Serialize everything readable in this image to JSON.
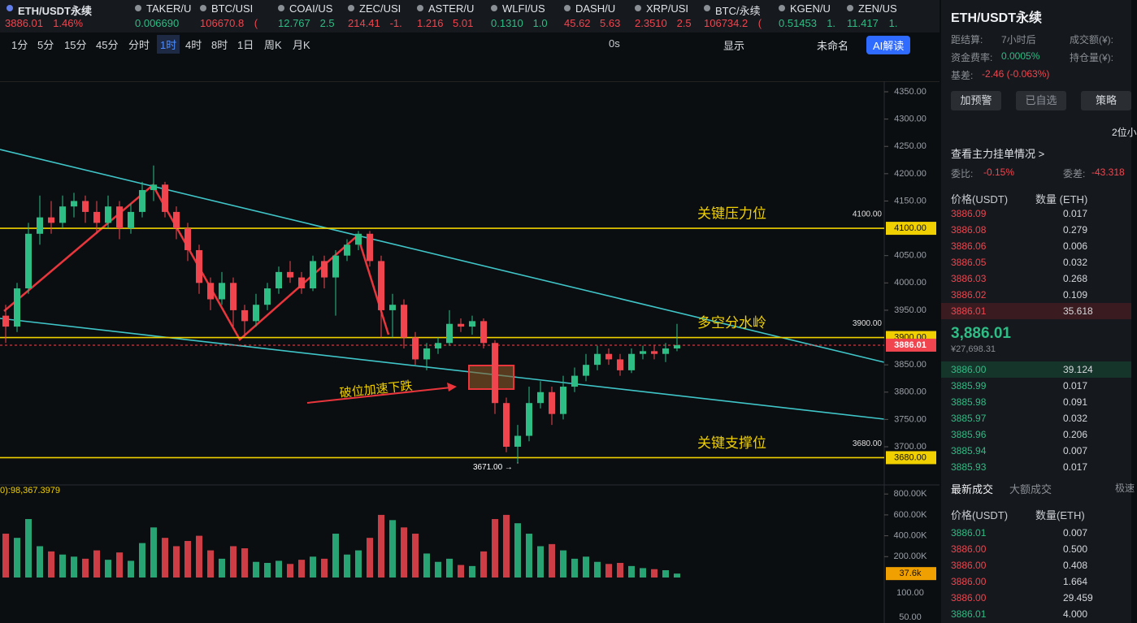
{
  "tabs": [
    {
      "name": "ETH/USDT永续",
      "price": "3886.01",
      "change": "1.46%",
      "color": "#f0454f"
    },
    {
      "name": "TAKER/U",
      "price": "0.006690",
      "color": "#2ebd85"
    },
    {
      "name": "BTC/USI",
      "price": "106670.8",
      "change": "(",
      "color": "#f0454f"
    },
    {
      "name": "COAI/US",
      "price": "12.767",
      "change": "2.5",
      "color": "#2ebd85"
    },
    {
      "name": "ZEC/USI",
      "price": "214.41",
      "change": "-1.",
      "color": "#f0454f"
    },
    {
      "name": "ASTER/U",
      "price": "1.216",
      "change": "5.01",
      "color": "#f0454f"
    },
    {
      "name": "WLFI/US",
      "price": "0.1310",
      "change": "1.0",
      "color": "#2ebd85"
    },
    {
      "name": "DASH/U",
      "price": "45.62",
      "change": "5.63",
      "color": "#f0454f"
    },
    {
      "name": "XRP/USI",
      "price": "2.3510",
      "change": "2.5",
      "color": "#f0454f"
    },
    {
      "name": "BTC/永续",
      "price": "106734.2",
      "change": "(",
      "color": "#f0454f"
    },
    {
      "name": "KGEN/U",
      "price": "0.51453",
      "change": "1.",
      "color": "#2ebd85"
    },
    {
      "name": "ZEN/US",
      "price": "11.417",
      "change": "1.",
      "color": "#2ebd85"
    }
  ],
  "intervals": [
    "1分",
    "5分",
    "15分",
    "45分",
    "分时",
    "1时",
    "4时",
    "8时",
    "1日",
    "周K",
    "月K"
  ],
  "active_interval": 5,
  "toolbar": {
    "timer": "0s",
    "display": "显示",
    "layout": "未命名",
    "ai": "AI解读"
  },
  "chart_data": {
    "type": "candlestick",
    "ylim": [
      3650,
      4380
    ],
    "yticks": [
      {
        "value": 4350,
        "label": "4350.00"
      },
      {
        "value": 4300,
        "label": "4300.00"
      },
      {
        "value": 4250,
        "label": "4250.00"
      },
      {
        "value": 4200,
        "label": "4200.00"
      },
      {
        "value": 4150,
        "label": "4150.00"
      },
      {
        "value": 4050,
        "label": "4050.00"
      },
      {
        "value": 4000,
        "label": "4000.00"
      },
      {
        "value": 3950,
        "label": "3950.00"
      },
      {
        "value": 3850,
        "label": "3850.00"
      },
      {
        "value": 3800,
        "label": "3800.00"
      },
      {
        "value": 3750,
        "label": "3750.00"
      },
      {
        "value": 3700,
        "label": "3700.00"
      }
    ],
    "levels": [
      {
        "name": "关键压力位",
        "value": 4100,
        "label": "4100.00",
        "axis_label": "4100.00"
      },
      {
        "name": "多空分水岭",
        "value": 3900,
        "label": "3900.00",
        "axis_label": "3900.00"
      },
      {
        "name": "关键支撑位",
        "value": 3680,
        "label": "3680.00",
        "axis_label": "3680.00"
      }
    ],
    "last_price": {
      "value": 3886.01,
      "label": "3886.01"
    },
    "low_label": {
      "value": 3671,
      "label": "3671.00 →"
    },
    "annotation": "破位加速下跌",
    "up_color": "#2ebd85",
    "down_color": "#f0454f",
    "candles": [
      [
        3940,
        3960,
        3890,
        3920
      ],
      [
        3920,
        4000,
        3910,
        3990
      ],
      [
        3990,
        4110,
        3980,
        4090
      ],
      [
        4090,
        4160,
        4070,
        4120
      ],
      [
        4120,
        4150,
        4090,
        4110
      ],
      [
        4110,
        4160,
        4100,
        4140
      ],
      [
        4140,
        4165,
        4120,
        4150
      ],
      [
        4150,
        4160,
        4110,
        4130
      ],
      [
        4130,
        4150,
        4090,
        4110
      ],
      [
        4110,
        4160,
        4100,
        4140
      ],
      [
        4140,
        4150,
        4080,
        4100
      ],
      [
        4100,
        4145,
        4090,
        4130
      ],
      [
        4130,
        4185,
        4120,
        4170
      ],
      [
        4170,
        4215,
        4150,
        4180
      ],
      [
        4180,
        4185,
        4120,
        4130
      ],
      [
        4130,
        4140,
        4080,
        4100
      ],
      [
        4100,
        4110,
        4040,
        4060
      ],
      [
        4060,
        4070,
        3980,
        4000
      ],
      [
        4000,
        4010,
        3950,
        3970
      ],
      [
        3970,
        4020,
        3960,
        4000
      ],
      [
        4000,
        4010,
        3920,
        3950
      ],
      [
        3950,
        3960,
        3900,
        3930
      ],
      [
        3930,
        3980,
        3920,
        3960
      ],
      [
        3960,
        4000,
        3950,
        3990
      ],
      [
        3990,
        4030,
        3980,
        4020
      ],
      [
        4020,
        4040,
        4000,
        4010
      ],
      [
        4010,
        4020,
        3980,
        3990
      ],
      [
        3990,
        4050,
        3985,
        4040
      ],
      [
        4040,
        4050,
        3990,
        4010
      ],
      [
        4010,
        4060,
        3940,
        4050
      ],
      [
        4050,
        4080,
        4040,
        4070
      ],
      [
        4070,
        4095,
        4060,
        4090
      ],
      [
        4090,
        4095,
        4030,
        4040
      ],
      [
        4040,
        4050,
        3900,
        3950
      ],
      [
        3950,
        3980,
        3900,
        3960
      ],
      [
        3960,
        3970,
        3880,
        3900
      ],
      [
        3900,
        3910,
        3850,
        3860
      ],
      [
        3860,
        3890,
        3840,
        3880
      ],
      [
        3880,
        3900,
        3870,
        3890
      ],
      [
        3890,
        3950,
        3885,
        3925
      ],
      [
        3925,
        3935,
        3910,
        3920
      ],
      [
        3920,
        3940,
        3905,
        3930
      ],
      [
        3930,
        3935,
        3880,
        3890
      ],
      [
        3890,
        3895,
        3760,
        3780
      ],
      [
        3780,
        3790,
        3690,
        3700
      ],
      [
        3700,
        3740,
        3671,
        3720
      ],
      [
        3720,
        3810,
        3710,
        3780
      ],
      [
        3780,
        3820,
        3770,
        3800
      ],
      [
        3800,
        3810,
        3740,
        3760
      ],
      [
        3760,
        3830,
        3750,
        3810
      ],
      [
        3810,
        3845,
        3800,
        3830
      ],
      [
        3830,
        3870,
        3820,
        3850
      ],
      [
        3850,
        3885,
        3840,
        3870
      ],
      [
        3870,
        3880,
        3850,
        3860
      ],
      [
        3860,
        3870,
        3830,
        3840
      ],
      [
        3840,
        3880,
        3835,
        3870
      ],
      [
        3870,
        3885,
        3860,
        3875
      ],
      [
        3875,
        3885,
        3860,
        3870
      ],
      [
        3870,
        3890,
        3855,
        3880
      ],
      [
        3880,
        3925,
        3875,
        3886.01
      ]
    ],
    "volume_ylim": [
      0,
      860000
    ],
    "volume_ticks": [
      {
        "value": 800000,
        "label": "800.00K"
      },
      {
        "value": 600000,
        "label": "600.00K"
      },
      {
        "value": 400000,
        "label": "400.00K"
      },
      {
        "value": 200000,
        "label": "200.00K"
      }
    ],
    "indicator_ticks": [
      "100.00",
      "50.00"
    ],
    "volume_title": "0):98,367.3979",
    "volumes": [
      420000,
      380000,
      560000,
      300000,
      250000,
      220000,
      200000,
      180000,
      260000,
      170000,
      240000,
      160000,
      330000,
      480000,
      380000,
      300000,
      350000,
      400000,
      260000,
      180000,
      300000,
      280000,
      150000,
      140000,
      160000,
      130000,
      170000,
      200000,
      180000,
      420000,
      220000,
      260000,
      380000,
      600000,
      550000,
      480000,
      420000,
      230000,
      150000,
      180000,
      120000,
      110000,
      250000,
      560000,
      600000,
      520000,
      420000,
      300000,
      320000,
      260000,
      180000,
      200000,
      150000,
      130000,
      140000,
      110000,
      90000,
      80000,
      70000,
      37600
    ],
    "volume_label": "37.6k"
  },
  "panel": {
    "title": "ETH/USDT永续",
    "info": [
      [
        "距结算:",
        "7小时后"
      ],
      [
        "成交额(¥):"
      ],
      [
        "资金费率:",
        "0.0005%"
      ],
      [
        "持仓量(¥):"
      ],
      [
        "基差:",
        "-2.46 (-0.063%)"
      ]
    ],
    "buttons": [
      "加预警",
      "已自选",
      "策略"
    ],
    "precision": "2位小",
    "depth_link": "查看主力挂单情况 >",
    "ratio": [
      "委比:",
      "-0.15%",
      "委差:",
      "-43.318"
    ],
    "header": [
      "价格(USDT)",
      "数量 (ETH)"
    ],
    "asks": [
      [
        "3886.09",
        "0.017"
      ],
      [
        "3886.08",
        "0.279"
      ],
      [
        "3886.06",
        "0.006"
      ],
      [
        "3886.05",
        "0.032"
      ],
      [
        "3886.03",
        "0.268"
      ],
      [
        "3886.02",
        "0.109"
      ],
      [
        "3886.01",
        "35.618"
      ]
    ],
    "mid": "3,886.01",
    "mid_cny": "¥27,698.31",
    "bids": [
      [
        "3886.00",
        "39.124"
      ],
      [
        "3885.99",
        "0.017"
      ],
      [
        "3885.98",
        "0.091"
      ],
      [
        "3885.97",
        "0.032"
      ],
      [
        "3885.96",
        "0.206"
      ],
      [
        "3885.94",
        "0.007"
      ],
      [
        "3885.93",
        "0.017"
      ]
    ],
    "trade_tabs": [
      "最新成交",
      "大额成交",
      "极速"
    ],
    "trade_header": [
      "价格(USDT)",
      "数量(ETH)"
    ],
    "trades": [
      [
        "3886.01",
        "0.007",
        "#2ebd85"
      ],
      [
        "3886.00",
        "0.500",
        "#f0454f"
      ],
      [
        "3886.00",
        "0.408",
        "#f0454f"
      ],
      [
        "3886.00",
        "1.664",
        "#f0454f"
      ],
      [
        "3886.00",
        "29.459",
        "#f0454f"
      ],
      [
        "3886.01",
        "4.000",
        "#2ebd85"
      ]
    ]
  }
}
